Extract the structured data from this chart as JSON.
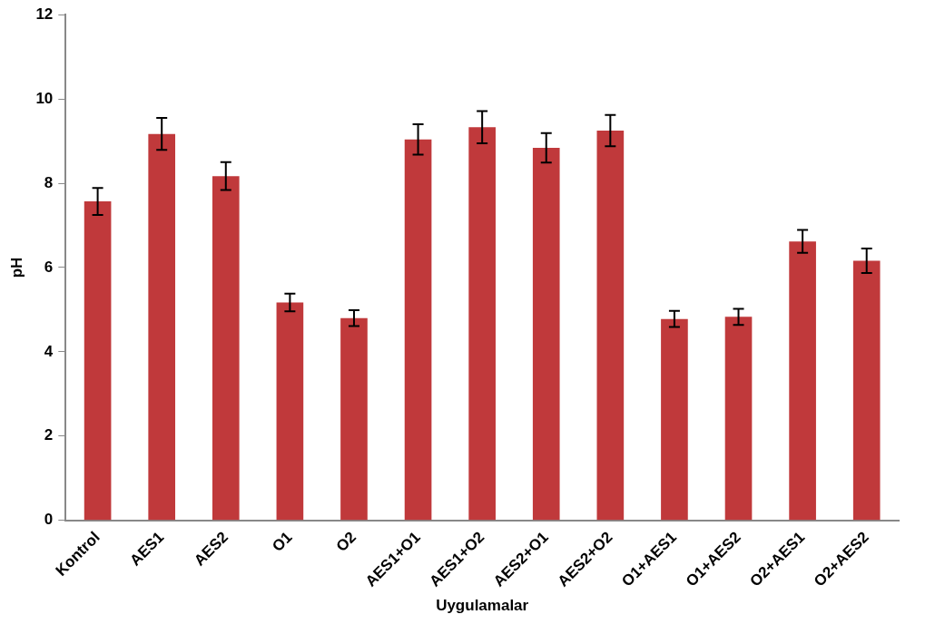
{
  "chart_data": {
    "type": "bar",
    "xlabel": "Uygulamalar",
    "ylabel": "pH",
    "categories": [
      "Kontrol",
      "AES1",
      "AES2",
      "O1",
      "O2",
      "AES1+O1",
      "AES1+O2",
      "AES2+O1",
      "AES2+O2",
      "O1+AES1",
      "O1+AES2",
      "O2+AES1",
      "O2+AES2"
    ],
    "values": [
      7.57,
      9.17,
      8.17,
      5.17,
      4.8,
      9.04,
      9.33,
      8.84,
      9.25,
      4.78,
      4.83,
      6.62,
      6.16
    ],
    "errors": [
      0.32,
      0.38,
      0.33,
      0.21,
      0.19,
      0.36,
      0.38,
      0.35,
      0.37,
      0.19,
      0.19,
      0.27,
      0.29
    ],
    "color": "#c0393b",
    "ylim": [
      0,
      12
    ],
    "yticks": [
      0,
      2,
      4,
      6,
      8,
      10,
      12
    ],
    "grid": false,
    "legend": false
  }
}
